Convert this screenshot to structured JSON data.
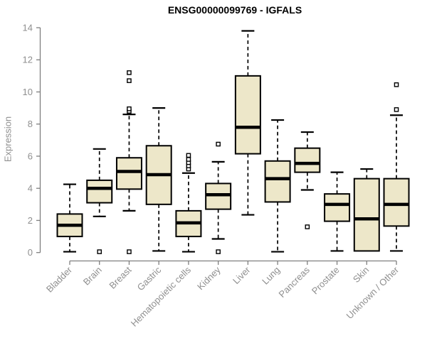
{
  "colors": {
    "box_fill": "#EDE7C9",
    "box_stroke": "#000000",
    "median": "#000000",
    "whisker": "#000000",
    "outlier_stroke": "#000000",
    "axis": "#7f7f7f",
    "tick_label": "#8f8f8f",
    "title": "#000000",
    "background": "#ffffff"
  },
  "chart_data": {
    "type": "boxplot",
    "title": "ENSG00000099769 - IGFALS",
    "xlabel": "",
    "ylabel": "Expression",
    "ylim": [
      0,
      14
    ],
    "yticks": [
      0,
      2,
      4,
      6,
      8,
      10,
      12,
      14
    ],
    "grid": false,
    "legend": "none",
    "categories": [
      "Bladder",
      "Brain",
      "Breast",
      "Gastric",
      "Hematopoietic cells",
      "Kidney",
      "Liver",
      "Lung",
      "Pancreas",
      "Prostate",
      "Skin",
      "Unknown / Other"
    ],
    "boxes": [
      {
        "label": "Bladder",
        "whislo": 0.05,
        "q1": 1.0,
        "med": 1.7,
        "q3": 2.4,
        "whishi": 4.25,
        "outliers": []
      },
      {
        "label": "Brain",
        "whislo": 2.25,
        "q1": 3.1,
        "med": 4.0,
        "q3": 4.5,
        "whishi": 6.45,
        "outliers": [
          0.05
        ]
      },
      {
        "label": "Breast",
        "whislo": 2.6,
        "q1": 3.95,
        "med": 5.05,
        "q3": 5.9,
        "whishi": 8.6,
        "outliers": [
          8.8,
          8.95,
          10.7,
          11.2,
          0.05
        ]
      },
      {
        "label": "Gastric",
        "whislo": 0.1,
        "q1": 3.0,
        "med": 4.85,
        "q3": 6.65,
        "whishi": 9.0,
        "outliers": []
      },
      {
        "label": "Hematopoietic cells",
        "whislo": 0.05,
        "q1": 1.0,
        "med": 1.85,
        "q3": 2.6,
        "whishi": 4.95,
        "outliers": [
          5.2,
          5.4,
          5.6,
          5.8,
          6.05
        ]
      },
      {
        "label": "Kidney",
        "whislo": 0.85,
        "q1": 2.7,
        "med": 3.6,
        "q3": 4.3,
        "whishi": 5.65,
        "outliers": [
          6.75,
          0.05
        ]
      },
      {
        "label": "Liver",
        "whislo": 2.35,
        "q1": 6.15,
        "med": 7.8,
        "q3": 11.0,
        "whishi": 13.8,
        "outliers": []
      },
      {
        "label": "Lung",
        "whislo": 0.05,
        "q1": 3.15,
        "med": 4.6,
        "q3": 5.7,
        "whishi": 8.25,
        "outliers": []
      },
      {
        "label": "Pancreas",
        "whislo": 3.9,
        "q1": 5.0,
        "med": 5.55,
        "q3": 6.5,
        "whishi": 7.5,
        "outliers": [
          1.6
        ]
      },
      {
        "label": "Prostate",
        "whislo": 0.1,
        "q1": 1.95,
        "med": 3.0,
        "q3": 3.65,
        "whishi": 5.0,
        "outliers": []
      },
      {
        "label": "Skin",
        "whislo": 0.1,
        "q1": 0.1,
        "med": 2.1,
        "q3": 4.6,
        "whishi": 5.2,
        "outliers": []
      },
      {
        "label": "Unknown / Other",
        "whislo": 0.1,
        "q1": 1.65,
        "med": 3.0,
        "q3": 4.6,
        "whishi": 8.55,
        "outliers": [
          8.9,
          10.45
        ]
      }
    ]
  }
}
